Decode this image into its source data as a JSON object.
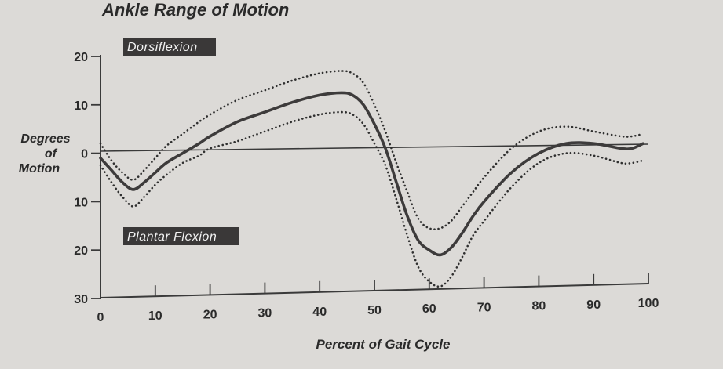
{
  "chart_data": {
    "type": "line",
    "title": "Ankle Range of Motion",
    "xlabel": "Percent of Gait Cycle",
    "ylabel_lines": [
      "Degrees",
      "of",
      "Motion"
    ],
    "xlim": [
      0,
      100
    ],
    "ylim": [
      -30,
      20
    ],
    "xticks": [
      0,
      10,
      20,
      30,
      40,
      50,
      60,
      70,
      80,
      90,
      100
    ],
    "yticks": [
      {
        "value": 20,
        "label": "20"
      },
      {
        "value": 10,
        "label": "10"
      },
      {
        "value": 0,
        "label": "0"
      },
      {
        "value": -10,
        "label": "10"
      },
      {
        "value": -20,
        "label": "20"
      },
      {
        "value": -30,
        "label": "30"
      }
    ],
    "annotations": {
      "upper": "Dorsiflexion",
      "lower": "Plantar Flexion"
    },
    "grid": false,
    "series": [
      {
        "style": "solid",
        "x": [
          0,
          2,
          4,
          6,
          8,
          10,
          12,
          15,
          18,
          20,
          25,
          30,
          35,
          40,
          44,
          46,
          48,
          50,
          52,
          54,
          56,
          58,
          60,
          62,
          64,
          66,
          68,
          70,
          75,
          80,
          85,
          90,
          95,
          97,
          99
        ],
        "y": [
          -1,
          -3.5,
          -6,
          -7.5,
          -6,
          -4,
          -2,
          0,
          2,
          3.5,
          6.5,
          8.5,
          10.5,
          12,
          12.5,
          12,
          10,
          6,
          1,
          -6,
          -13,
          -18,
          -20,
          -21,
          -19.5,
          -16.5,
          -13,
          -10,
          -4,
          0,
          2,
          2,
          1,
          1,
          2
        ]
      },
      {
        "style": "dotted",
        "x": [
          0,
          2,
          4,
          6,
          8,
          10,
          12,
          15,
          18,
          20,
          25,
          30,
          35,
          40,
          44,
          46,
          48,
          50,
          52,
          54,
          56,
          58,
          60,
          62,
          64,
          66,
          68,
          70,
          75,
          80,
          85,
          90,
          95,
          97,
          99
        ],
        "y": [
          2,
          -1.5,
          -4,
          -5.5,
          -3.5,
          -1,
          1.5,
          4,
          6.5,
          8,
          11,
          13,
          15,
          16.5,
          17,
          16.5,
          14.5,
          10,
          4.5,
          -2,
          -8,
          -13.5,
          -15.5,
          -15.5,
          -14,
          -11,
          -8,
          -5,
          1,
          4.5,
          5.5,
          4.5,
          3.5,
          3.5,
          4
        ]
      },
      {
        "style": "dotted",
        "x": [
          0,
          2,
          4,
          6,
          8,
          10,
          12,
          15,
          18,
          20,
          25,
          30,
          35,
          40,
          44,
          46,
          48,
          50,
          52,
          54,
          56,
          58,
          60,
          62,
          64,
          66,
          68,
          70,
          75,
          80,
          85,
          90,
          95,
          97,
          99
        ],
        "y": [
          -2.5,
          -6,
          -9,
          -11,
          -9,
          -6.5,
          -4.5,
          -2,
          -0.5,
          1,
          2.5,
          4.5,
          6.5,
          8,
          8.5,
          8,
          6,
          2,
          -2.5,
          -9.5,
          -17,
          -23.5,
          -26.5,
          -27.5,
          -25.5,
          -21.5,
          -17,
          -14,
          -7,
          -2,
          0,
          -0.5,
          -2,
          -2,
          -1.5
        ]
      }
    ]
  }
}
